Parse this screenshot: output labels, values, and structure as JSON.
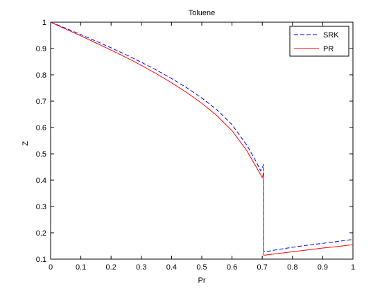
{
  "chart_data": {
    "type": "line",
    "title": "Toluene",
    "xlabel": "Pr",
    "ylabel": "Z",
    "xlim": [
      0,
      1
    ],
    "ylim": [
      0.1,
      1
    ],
    "xticks": [
      0,
      0.1,
      0.2,
      0.3,
      0.4,
      0.5,
      0.6,
      0.7,
      0.8,
      0.9,
      1
    ],
    "xtick_labels": [
      "0",
      "0.1",
      "0.2",
      "0.3",
      "0.4",
      "0.5",
      "0.6",
      "0.7",
      "0.8",
      "0.9",
      "1"
    ],
    "yticks": [
      0.1,
      0.2,
      0.3,
      0.4,
      0.5,
      0.6,
      0.7,
      0.8,
      0.9,
      1
    ],
    "ytick_labels": [
      "0.1",
      "0.2",
      "0.3",
      "0.4",
      "0.5",
      "0.6",
      "0.7",
      "0.8",
      "0.9",
      "1"
    ],
    "grid": false,
    "legend_position": "top-right",
    "series": [
      {
        "name": "SRK",
        "color": "#0000ff",
        "dash": true,
        "x": [
          0,
          0.05,
          0.1,
          0.15,
          0.2,
          0.25,
          0.3,
          0.35,
          0.4,
          0.45,
          0.5,
          0.55,
          0.6,
          0.65,
          0.68,
          0.695,
          0.705,
          0.705,
          0.71,
          0.75,
          0.8,
          0.85,
          0.9,
          0.95,
          1
        ],
        "y": [
          1,
          0.977,
          0.953,
          0.928,
          0.903,
          0.876,
          0.848,
          0.818,
          0.786,
          0.751,
          0.712,
          0.667,
          0.611,
          0.531,
          0.47,
          0.435,
          0.46,
          0.13,
          0.128,
          0.136,
          0.145,
          0.153,
          0.16,
          0.167,
          0.175
        ]
      },
      {
        "name": "PR",
        "color": "#ff0000",
        "dash": false,
        "x": [
          0,
          0.05,
          0.1,
          0.15,
          0.2,
          0.25,
          0.3,
          0.35,
          0.4,
          0.45,
          0.5,
          0.55,
          0.6,
          0.65,
          0.68,
          0.7,
          0.705,
          0.705,
          0.71,
          0.75,
          0.8,
          0.85,
          0.9,
          0.95,
          1
        ],
        "y": [
          1,
          0.974,
          0.948,
          0.921,
          0.894,
          0.866,
          0.836,
          0.804,
          0.77,
          0.733,
          0.692,
          0.645,
          0.588,
          0.51,
          0.45,
          0.41,
          0.43,
          0.115,
          0.115,
          0.121,
          0.128,
          0.135,
          0.142,
          0.148,
          0.155
        ]
      }
    ]
  }
}
